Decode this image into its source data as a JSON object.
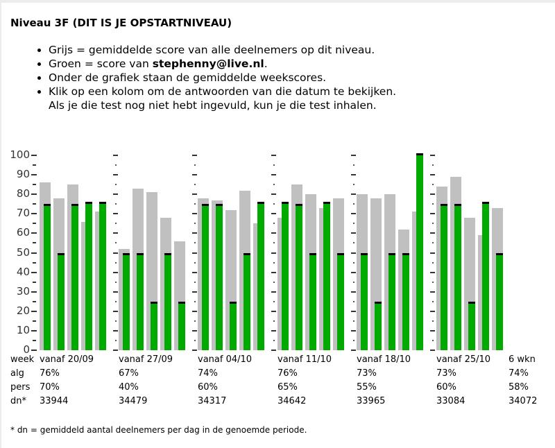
{
  "title": "Niveau 3F (DIT IS JE OPSTARTNIVEAU)",
  "bullets": {
    "b1": "Grijs = gemiddelde score van alle deelnemers op dit niveau.",
    "b2_prefix": "Groen = score van ",
    "b2_user": "stephenny@live.nl",
    "b2_suffix": ".",
    "b3": "Onder de grafiek staan de gemiddelde weekscores.",
    "b4_line1": "Klik op een kolom om de antwoorden van die datum te bekijken.",
    "b4_line2": "Als je die test nog niet hebt ingevuld, kun je die test inhalen."
  },
  "colors": {
    "grey": "#c0c0c0",
    "green": "#00aa00",
    "marker": "#000000"
  },
  "chart_data": {
    "type": "bar",
    "ylim": [
      0,
      100
    ],
    "yticks": [
      "0",
      "10",
      "20",
      "30",
      "40",
      "50",
      "60",
      "70",
      "80",
      "90",
      "100"
    ],
    "groups": [
      {
        "week": "vanaf 20/09",
        "grey": [
          86,
          78,
          85,
          66,
          71
        ],
        "green": [
          75,
          50,
          75,
          76,
          76
        ]
      },
      {
        "week": "vanaf 27/09",
        "grey": [
          52,
          83,
          81,
          68,
          56
        ],
        "green": [
          50,
          50,
          25,
          50,
          25
        ]
      },
      {
        "week": "vanaf 04/10",
        "grey": [
          78,
          77,
          72,
          82,
          65
        ],
        "green": [
          75,
          75,
          25,
          50,
          76
        ]
      },
      {
        "week": "vanaf 11/10",
        "grey": [
          68,
          85,
          80,
          73,
          78
        ],
        "green": [
          76,
          75,
          50,
          76,
          50
        ]
      },
      {
        "week": "vanaf 18/10",
        "grey": [
          80,
          78,
          80,
          62,
          71
        ],
        "green": [
          50,
          25,
          50,
          50,
          101
        ]
      },
      {
        "week": "vanaf 25/10",
        "grey": [
          84,
          89,
          68,
          59,
          73
        ],
        "green": [
          75,
          75,
          25,
          76,
          50
        ]
      }
    ]
  },
  "table": {
    "row_labels": [
      "week",
      "alg",
      "pers",
      "dn*"
    ],
    "columns": [
      {
        "week": "vanaf 20/09",
        "alg": "76%",
        "pers": "70%",
        "dn": "33944"
      },
      {
        "week": "vanaf 27/09",
        "alg": "67%",
        "pers": "40%",
        "dn": "34479"
      },
      {
        "week": "vanaf 04/10",
        "alg": "74%",
        "pers": "60%",
        "dn": "34317"
      },
      {
        "week": "vanaf 11/10",
        "alg": "76%",
        "pers": "65%",
        "dn": "34642"
      },
      {
        "week": "vanaf 18/10",
        "alg": "73%",
        "pers": "55%",
        "dn": "33965"
      },
      {
        "week": "vanaf 25/10",
        "alg": "73%",
        "pers": "60%",
        "dn": "33084"
      },
      {
        "week": "6 wkn",
        "alg": "74%",
        "pers": "58%",
        "dn": "34072"
      }
    ]
  },
  "footnote": "* dn = gemiddeld aantal deelnemers per dag in de genoemde periode."
}
